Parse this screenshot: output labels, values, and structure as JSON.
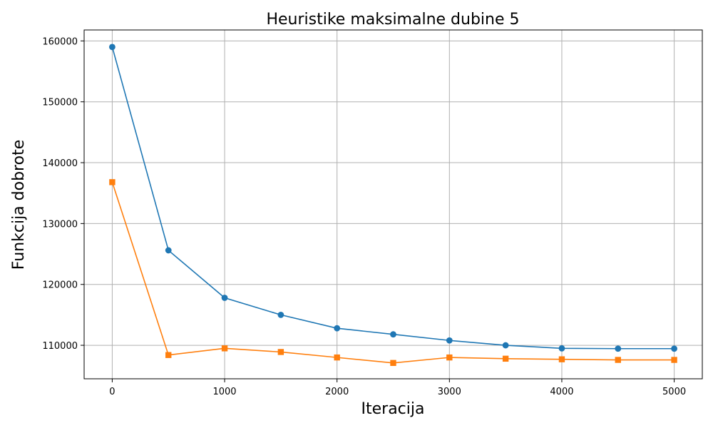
{
  "chart_data": {
    "type": "line",
    "title": "Heuristike maksimalne dubine 5",
    "xlabel": "Iteracija",
    "ylabel": "Funkcija dobrote",
    "xlim": [
      -250,
      5250
    ],
    "ylim": [
      104500,
      161800
    ],
    "x_ticks": [
      0,
      1000,
      2000,
      3000,
      4000,
      5000
    ],
    "y_ticks": [
      110000,
      120000,
      130000,
      140000,
      150000,
      160000
    ],
    "grid": true,
    "x": [
      0,
      500,
      1000,
      1500,
      2000,
      2500,
      3000,
      3500,
      4000,
      4500,
      5000
    ],
    "series": [
      {
        "color": "#1f77b4",
        "marker": "circle",
        "values": [
          159000,
          125600,
          117800,
          115000,
          112800,
          111800,
          110800,
          110000,
          109500,
          109450,
          109450
        ]
      },
      {
        "color": "#ff7f0e",
        "marker": "square",
        "values": [
          136800,
          108400,
          109500,
          108900,
          108000,
          107100,
          108000,
          107800,
          107700,
          107600,
          107600
        ]
      }
    ]
  }
}
